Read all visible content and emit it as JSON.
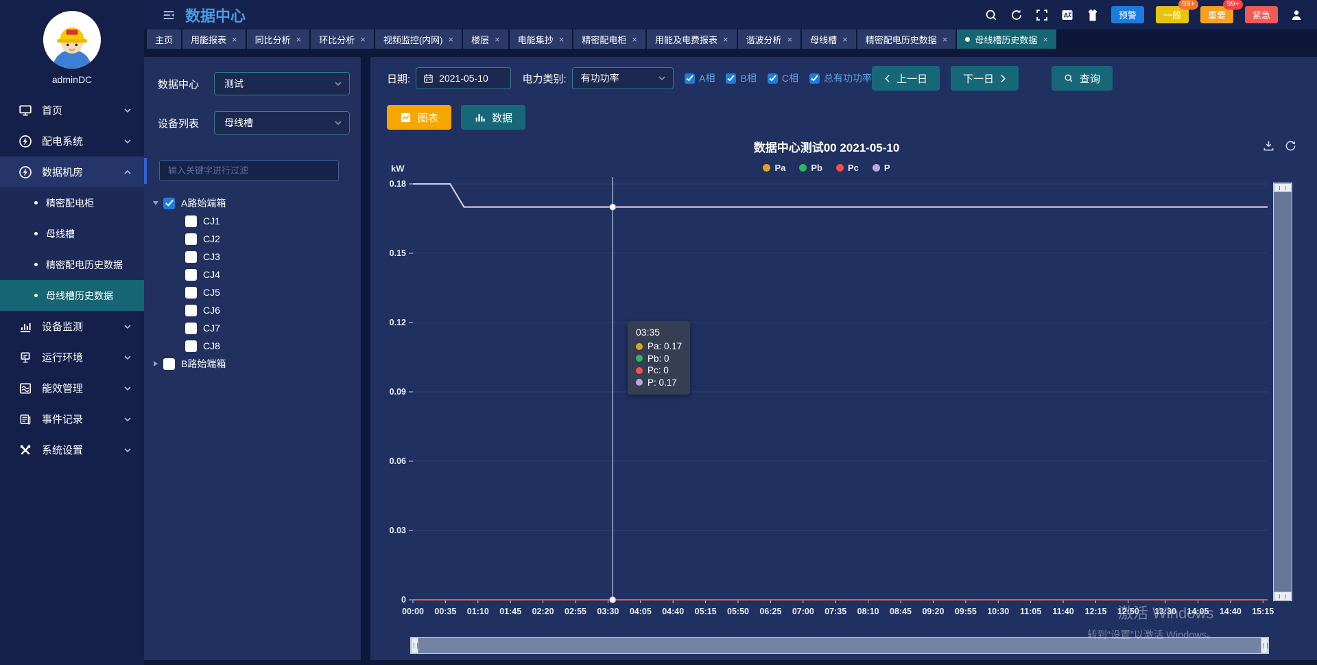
{
  "header": {
    "title": "数据中心",
    "icon_names": [
      "menu-fold-icon",
      "search-icon",
      "refresh-icon",
      "fullscreen-icon",
      "translate-icon",
      "vest-icon",
      "user-icon"
    ],
    "alarm_buttons": [
      {
        "label": "预警",
        "color": "#1b7ce0",
        "badge": null,
        "badge_color": null
      },
      {
        "label": "一般",
        "color": "#e7c414",
        "badge": "99+",
        "badge_color": "#f8742e"
      },
      {
        "label": "重要",
        "color": "#f6a11f",
        "badge": "99+",
        "badge_color": "#f5433f"
      },
      {
        "label": "紧急",
        "color": "#f25a55",
        "badge": null,
        "badge_color": null
      }
    ]
  },
  "tabs": [
    {
      "label": "主页",
      "closable": false,
      "active": false
    },
    {
      "label": "用能报表",
      "closable": true,
      "active": false
    },
    {
      "label": "同比分析",
      "closable": true,
      "active": false
    },
    {
      "label": "环比分析",
      "closable": true,
      "active": false
    },
    {
      "label": "视频监控(内网)",
      "closable": true,
      "active": false
    },
    {
      "label": "楼层",
      "closable": true,
      "active": false
    },
    {
      "label": "电能集抄",
      "closable": true,
      "active": false
    },
    {
      "label": "精密配电柜",
      "closable": true,
      "active": false
    },
    {
      "label": "用能及电费报表",
      "closable": true,
      "active": false
    },
    {
      "label": "谐波分析",
      "closable": true,
      "active": false
    },
    {
      "label": "母线槽",
      "closable": true,
      "active": false
    },
    {
      "label": "精密配电历史数据",
      "closable": true,
      "active": false
    },
    {
      "label": "母线槽历史数据",
      "closable": true,
      "active": true
    }
  ],
  "sidebar": {
    "username": "adminDC",
    "menu": [
      {
        "label": "首页",
        "icon": "home-icon",
        "expanded": false
      },
      {
        "label": "配电系统",
        "icon": "power-system-icon",
        "expanded": false
      },
      {
        "label": "数据机房",
        "icon": "data-room-icon",
        "expanded": true,
        "children": [
          {
            "label": "精密配电柜",
            "active": false
          },
          {
            "label": "母线槽",
            "active": false
          },
          {
            "label": "精密配电历史数据",
            "active": false
          },
          {
            "label": "母线槽历史数据",
            "active": true
          }
        ]
      },
      {
        "label": "设备监测",
        "icon": "device-monitor-icon",
        "expanded": false
      },
      {
        "label": "运行环境",
        "icon": "environment-icon",
        "expanded": false
      },
      {
        "label": "能效管理",
        "icon": "energy-icon",
        "expanded": false
      },
      {
        "label": "事件记录",
        "icon": "event-icon",
        "expanded": false
      },
      {
        "label": "系统设置",
        "icon": "settings-icon",
        "expanded": false
      }
    ]
  },
  "device_panel": {
    "datacenter_label": "数据中心",
    "datacenter_value": "测试",
    "device_label": "设备列表",
    "device_value": "母线槽",
    "filter_placeholder": "输入关键字进行过滤",
    "tree": [
      {
        "label": "A路始端箱",
        "checked": true,
        "expanded": true,
        "children": [
          {
            "label": "CJ1",
            "checked": false
          },
          {
            "label": "CJ2",
            "checked": false
          },
          {
            "label": "CJ3",
            "checked": false
          },
          {
            "label": "CJ4",
            "checked": false
          },
          {
            "label": "CJ5",
            "checked": false
          },
          {
            "label": "CJ6",
            "checked": false
          },
          {
            "label": "CJ7",
            "checked": false
          },
          {
            "label": "CJ8",
            "checked": false
          }
        ]
      },
      {
        "label": "B路始端箱",
        "checked": false,
        "expanded": false,
        "children": []
      }
    ]
  },
  "toolbar": {
    "date_label": "日期:",
    "date_value": "2021-05-10",
    "type_label": "电力类别:",
    "type_value": "有功功率",
    "checkboxes": [
      {
        "label": "A相",
        "checked": true
      },
      {
        "label": "B相",
        "checked": true
      },
      {
        "label": "C相",
        "checked": true
      },
      {
        "label": "总有功功率",
        "checked": true
      }
    ],
    "prev_button": "上一日",
    "next_button": "下一日",
    "query_button": "查询",
    "chart_button": "图表",
    "data_button": "数据"
  },
  "chart_tools": [
    "download-icon",
    "reload-icon"
  ],
  "chart_data": {
    "type": "line",
    "title": "数据中心测试00  2021-05-10",
    "unit": "kW",
    "ylim": [
      0,
      0.18
    ],
    "y_ticks": [
      0,
      0.03,
      0.06,
      0.09,
      0.12,
      0.15,
      0.18
    ],
    "x_start": "00:00",
    "x_end": "15:20",
    "x_tick_labels": [
      "00:00",
      "00:35",
      "01:10",
      "01:45",
      "02:20",
      "02:55",
      "03:30",
      "04:05",
      "04:40",
      "05:15",
      "05:50",
      "06:25",
      "07:00",
      "07:35",
      "08:10",
      "08:45",
      "09:20",
      "09:55",
      "10:30",
      "11:05",
      "11:40",
      "12:15",
      "12:50",
      "13:30",
      "14:05",
      "14:40",
      "15:15"
    ],
    "series": [
      {
        "name": "Pb",
        "color": "#2dbd64",
        "points": [
          [
            "00:00",
            0
          ],
          [
            "15:20",
            0
          ]
        ]
      },
      {
        "name": "Pc",
        "color": "#f5534e",
        "points": [
          [
            "00:00",
            0
          ],
          [
            "15:20",
            0
          ]
        ]
      },
      {
        "name": "Pa",
        "color": "#e4a32c",
        "points": [
          [
            "00:00",
            0.18
          ],
          [
            "00:40",
            0.18
          ],
          [
            "00:55",
            0.17
          ],
          [
            "15:20",
            0.17
          ]
        ]
      },
      {
        "name": "P",
        "color": "#d9cdf0",
        "points": [
          [
            "00:00",
            0.18
          ],
          [
            "00:40",
            0.18
          ],
          [
            "00:55",
            0.17
          ],
          [
            "15:20",
            0.17
          ]
        ]
      }
    ],
    "legend": [
      {
        "name": "Pa",
        "color": "#e0a51f"
      },
      {
        "name": "Pb",
        "color": "#2bb961"
      },
      {
        "name": "Pc",
        "color": "#f94f49"
      },
      {
        "name": "P",
        "color": "#b9a8e0"
      }
    ],
    "crosshair_time": "03:35",
    "crosshair_values": [
      0.17,
      0
    ],
    "tooltip": {
      "time": "03:35",
      "rows": [
        {
          "color": "#e0a51f",
          "text": "Pa: 0.17"
        },
        {
          "color": "#2bb961",
          "text": "Pb: 0"
        },
        {
          "color": "#f94f49",
          "text": "Pc: 0"
        },
        {
          "color": "#b9a8e0",
          "text": "P: 0.17"
        }
      ]
    }
  },
  "watermark": {
    "line1": "激活 Windows",
    "line2": "转到“设置”以激活 Windows。"
  }
}
